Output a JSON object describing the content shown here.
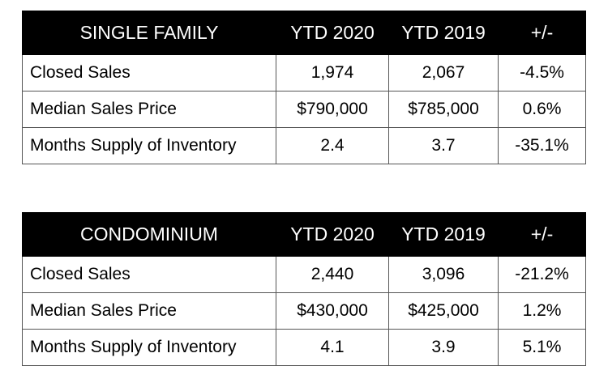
{
  "tables": [
    {
      "header": [
        "SINGLE FAMILY",
        "YTD 2020",
        "YTD 2019",
        "+/-"
      ],
      "rows": [
        [
          "Closed Sales",
          "1,974",
          "2,067",
          "-4.5%"
        ],
        [
          "Median Sales Price",
          "$790,000",
          "$785,000",
          "0.6%"
        ],
        [
          "Months Supply of Inventory",
          "2.4",
          "3.7",
          "-35.1%"
        ]
      ]
    },
    {
      "header": [
        "CONDOMINIUM",
        "YTD 2020",
        "YTD 2019",
        "+/-"
      ],
      "rows": [
        [
          "Closed Sales",
          "2,440",
          "3,096",
          "-21.2%"
        ],
        [
          "Median Sales Price",
          "$430,000",
          "$425,000",
          "1.2%"
        ],
        [
          "Months Supply of Inventory",
          "4.1",
          "3.9",
          "5.1%"
        ]
      ]
    }
  ]
}
